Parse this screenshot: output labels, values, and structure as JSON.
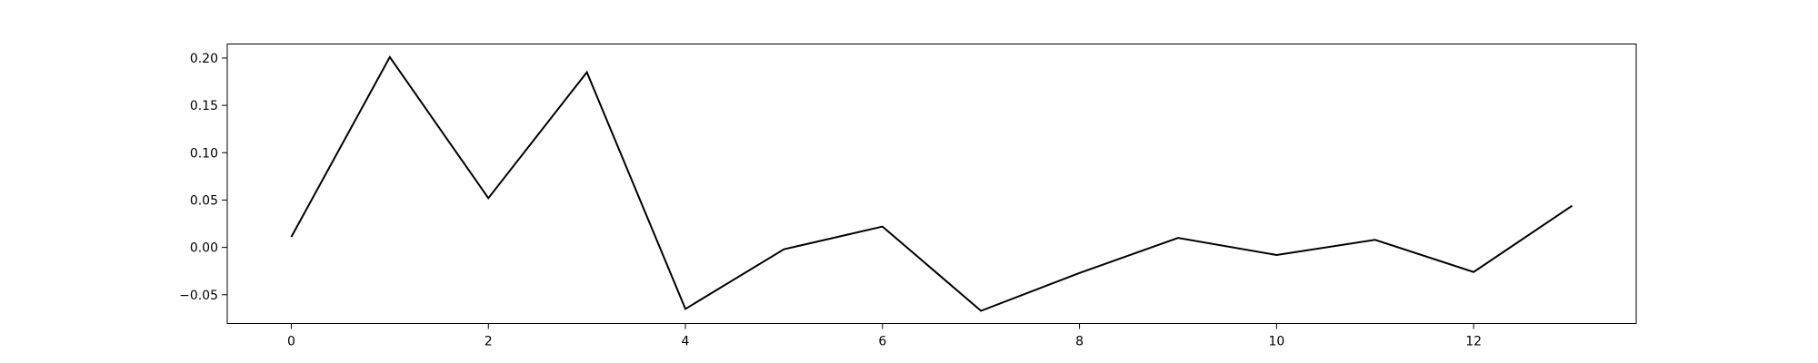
{
  "chart_data": {
    "type": "line",
    "title": "",
    "xlabel": "",
    "ylabel": "",
    "x": [
      0,
      1,
      2,
      3,
      4,
      5,
      6,
      7,
      8,
      9,
      10,
      11,
      12,
      13
    ],
    "series": [
      {
        "values": [
          0.011,
          0.201,
          0.052,
          0.185,
          -0.065,
          -0.002,
          0.022,
          -0.067,
          -0.027,
          0.01,
          -0.008,
          0.008,
          -0.026,
          0.044
        ],
        "color": "#000000"
      }
    ],
    "xlim": [
      -0.65,
      13.65
    ],
    "ylim": [
      -0.0804,
      0.2148
    ],
    "xticks": [
      0,
      2,
      4,
      6,
      8,
      10,
      12
    ],
    "xtick_labels": [
      "0",
      "2",
      "4",
      "6",
      "8",
      "10",
      "12"
    ],
    "yticks": [
      -0.05,
      0.0,
      0.05,
      0.1,
      0.15,
      0.2
    ],
    "ytick_labels": [
      "−0.05",
      "0.00",
      "0.05",
      "0.10",
      "0.15",
      "0.20"
    ],
    "grid": false,
    "legend": "none"
  }
}
